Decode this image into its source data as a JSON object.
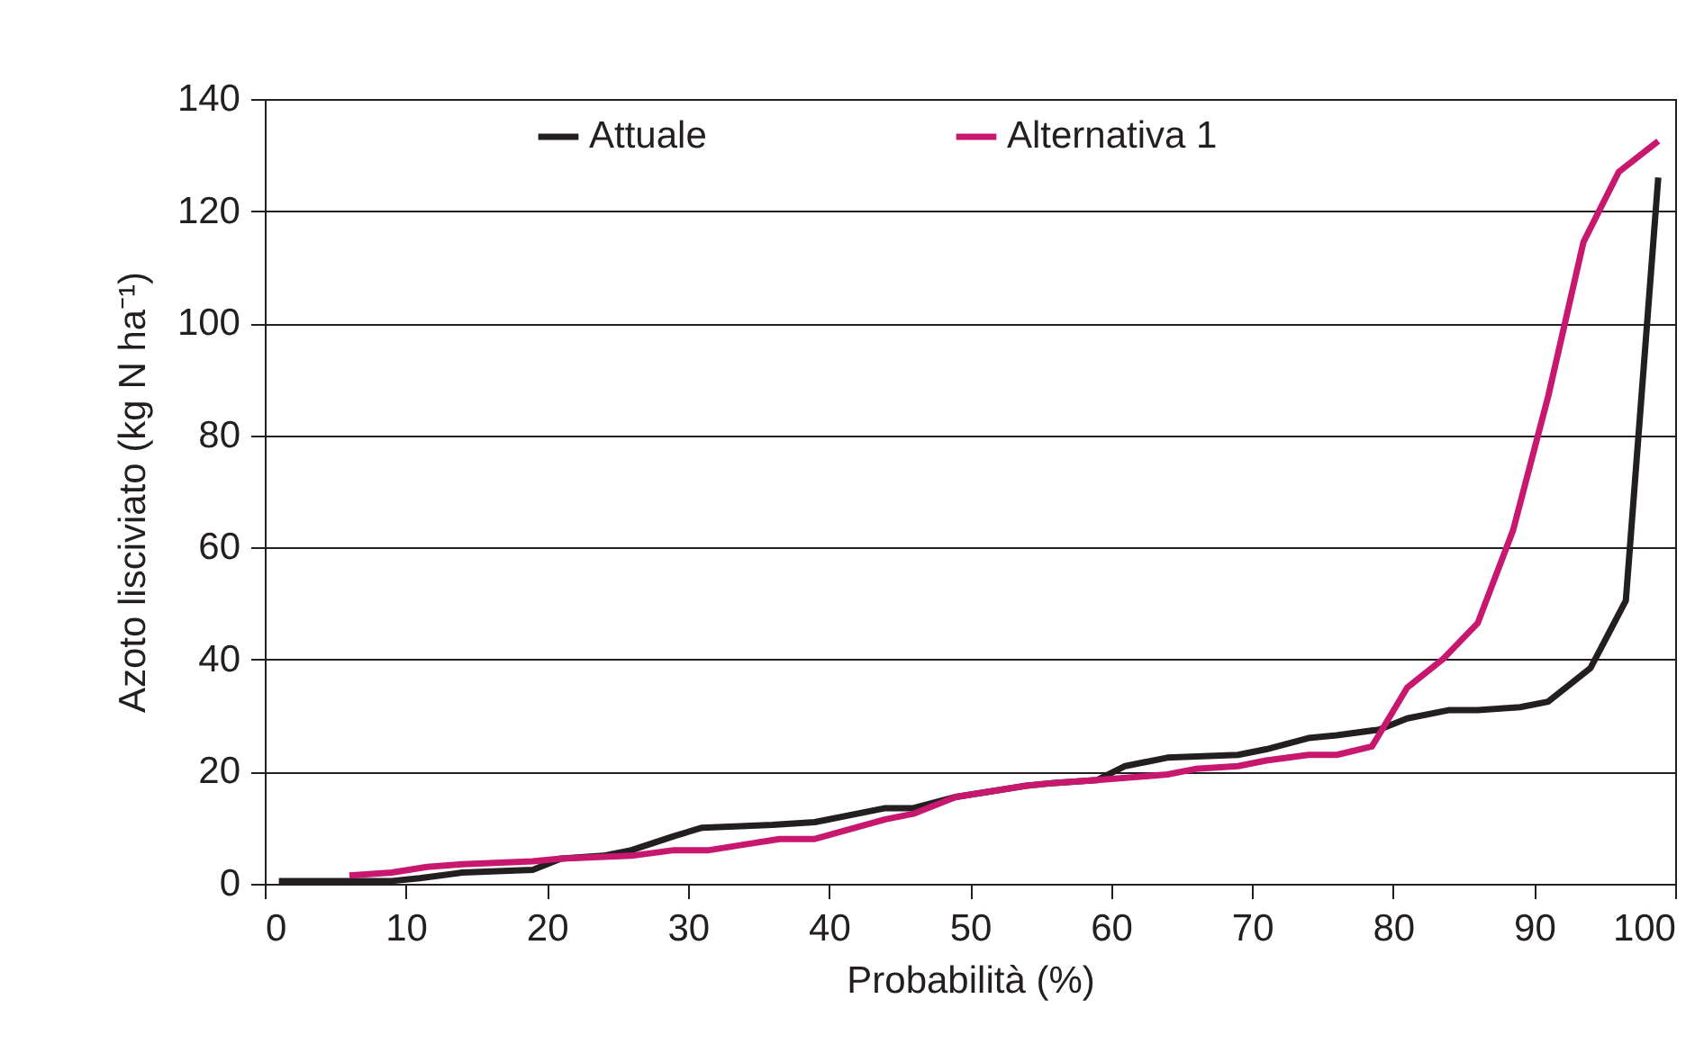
{
  "chart_data": {
    "type": "line",
    "xlabel": "Probabilità (%)",
    "ylabel": "Azoto lisciviato (kg N ha⁻¹)",
    "xlim": [
      0,
      100
    ],
    "xticks": [
      0,
      10,
      20,
      30,
      40,
      50,
      60,
      70,
      80,
      90,
      100
    ],
    "ylim": [
      0,
      140
    ],
    "yticks": [
      0,
      20,
      40,
      60,
      80,
      100,
      120,
      140
    ],
    "grid": "y",
    "legend": "top",
    "line_style": "solid",
    "marker": "none",
    "series": [
      {
        "name": "Attuale",
        "color": "#231f20",
        "x": [
          1,
          6,
          9,
          11,
          14,
          19,
          21,
          24,
          26,
          29,
          31,
          36,
          39,
          44,
          46,
          49,
          54,
          56,
          59,
          61,
          64,
          69,
          71,
          74,
          76,
          79,
          81,
          84,
          86,
          89,
          91,
          94,
          96.5,
          98.8
        ],
        "values": [
          0.5,
          0.5,
          0.5,
          1,
          2,
          2.5,
          4.5,
          5,
          6,
          8.5,
          10,
          10.5,
          11,
          13.5,
          13.5,
          15.5,
          17.5,
          18,
          18.5,
          21,
          22.5,
          23,
          24,
          26,
          26.5,
          27.5,
          29.5,
          31,
          31,
          31.5,
          32.5,
          38.5,
          50.5,
          126
        ]
      },
      {
        "name": "Alternativa 1",
        "color": "#c8176e",
        "x": [
          6,
          9,
          11.5,
          14,
          19,
          21,
          26,
          29,
          31.5,
          34,
          36.5,
          39,
          44,
          46,
          49,
          54,
          56,
          59,
          64,
          66,
          69,
          71,
          74,
          76,
          78.5,
          81,
          83.5,
          86,
          88.5,
          91,
          93.5,
          96,
          98.8
        ],
        "values": [
          1.5,
          2,
          3,
          3.5,
          4,
          4.5,
          5,
          6,
          6,
          7,
          8,
          8,
          11.5,
          12.5,
          15.5,
          17.5,
          18,
          18.5,
          19.5,
          20.5,
          21,
          22,
          23,
          23,
          24.5,
          35,
          40,
          46.5,
          63,
          87,
          114.5,
          127,
          132.5
        ]
      }
    ]
  }
}
